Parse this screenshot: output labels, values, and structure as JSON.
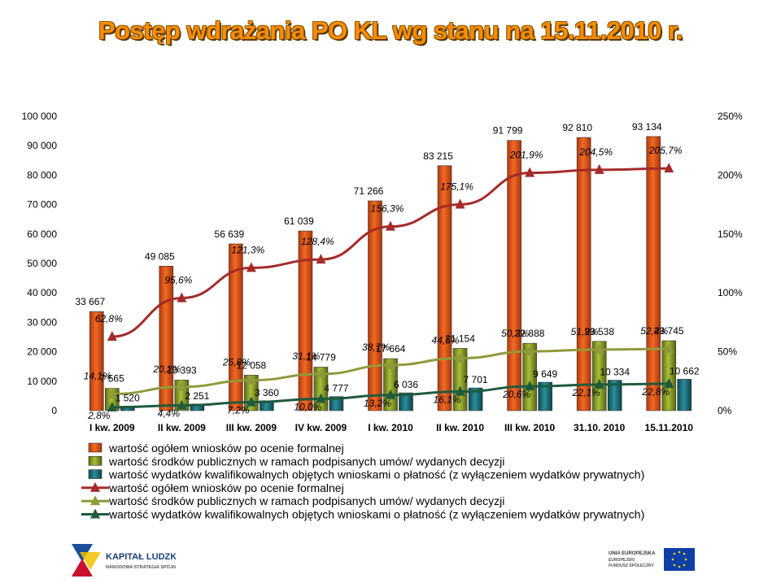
{
  "title": "Postęp wdrażania PO KL wg stanu na 15.11.2010 r.",
  "colors": {
    "series_bar_1": "#e0561b",
    "series_bar_2": "#8fa32a",
    "series_bar_3": "#1c6d78",
    "series_line_1": "#a52a2a",
    "series_line_2": "#8f9a3a",
    "series_line_3": "#1e5a3e",
    "title": "#ff8c00"
  },
  "chart_data": {
    "type": "bar",
    "combo": "bar+line",
    "categories": [
      "I kw. 2009",
      "II kw. 2009",
      "III kw. 2009",
      "IV kw. 2009",
      "I kw. 2010",
      "II kw. 2010",
      "III kw. 2010",
      "31.10. 2010",
      "15.11.2010"
    ],
    "left_axis": {
      "ylim": [
        0,
        100000
      ],
      "ticks": [
        "0",
        "10 000",
        "20 000",
        "30 000",
        "40 000",
        "50 000",
        "60 000",
        "70 000",
        "80 000",
        "90 000",
        "100 000"
      ]
    },
    "right_axis": {
      "ylim": [
        0,
        250
      ],
      "ticks": [
        "0%",
        "50%",
        "100%",
        "150%",
        "200%",
        "250%"
      ]
    },
    "bar_series": [
      {
        "name": "wartość ogółem wniosków po ocenie formalnej",
        "values": [
          33667,
          49085,
          56639,
          61039,
          71266,
          83215,
          91799,
          92810,
          93134
        ],
        "labels": [
          "33 667",
          "49 085",
          "56 639",
          "61 039",
          "71 266",
          "83 215",
          "91 799",
          "92 810",
          "93 134"
        ]
      },
      {
        "name": "wartość środków publicznych w ramach podpisanych umów/ wydanych decyzji",
        "values": [
          7565,
          10393,
          12058,
          14779,
          17664,
          21154,
          22888,
          23538,
          23745
        ],
        "labels": [
          "7 565",
          "10 393",
          "12 058",
          "14 779",
          "17 664",
          "21 154",
          "22 888",
          "23 538",
          "23 745"
        ]
      },
      {
        "name": "wartość wydatków kwalifikowalnych objętych wnioskami o płatność (z wyłączeniem wydatków prywatnych)",
        "values": [
          1520,
          2251,
          3360,
          4777,
          6036,
          7701,
          9649,
          10334,
          10662
        ],
        "labels": [
          "1 520",
          "2 251",
          "3 360",
          "4 777",
          "6 036",
          "7 701",
          "9 649",
          "10 334",
          "10 662"
        ]
      }
    ],
    "line_series": [
      {
        "name": "wartość ogółem wniosków po ocenie formalnej",
        "values": [
          62.8,
          95.6,
          121.3,
          128.4,
          156.3,
          175.1,
          201.9,
          204.5,
          205.7
        ],
        "labels": [
          "62,8%",
          "95,6%",
          "121,3%",
          "128,4%",
          "156,3%",
          "175,1%",
          "201,9%",
          "204,5%",
          "205,7%"
        ]
      },
      {
        "name": "wartość środków publicznych w ramach podpisanych umów/ wydanych decyzji",
        "values": [
          14.1,
          20.2,
          25.8,
          31.1,
          38.7,
          44.5,
          50.3,
          51.9,
          52.4
        ],
        "labels": [
          "14,1%",
          "20,2%",
          "25,8%",
          "31,1%",
          "38,7%",
          "44,5%",
          "50,3%",
          "51,9%",
          "52,4%"
        ]
      },
      {
        "name": "wartość wydatków kwalifikowalnych objętych wnioskami o płatność (z wyłączeniem wydatków prywatnych)",
        "values": [
          2.8,
          4.4,
          7.2,
          10.0,
          13.2,
          16.1,
          20.6,
          22.1,
          22.8
        ],
        "labels": [
          "2,8%",
          "4,4%",
          "7,2%",
          "10,0%",
          "13,2%",
          "16,1%",
          "20,6%",
          "22,1%",
          "22,8%"
        ]
      }
    ],
    "legend": {
      "placement": "bottom",
      "entries": [
        "wartość ogółem wniosków po ocenie formalnej",
        "wartość środków publicznych w ramach podpisanych umów/ wydanych decyzji",
        "wartość wydatków kwalifikowalnych objętych wnioskami o płatność (z wyłączeniem wydatków prywatnych)",
        "wartość ogółem wniosków po ocenie formalnej",
        "wartość środków publicznych w ramach podpisanych umów/ wydanych decyzji",
        "wartość wydatków kwalifikowalnych objętych wnioskami o płatność (z wyłączeniem wydatków prywatnych)"
      ]
    },
    "grid": false
  },
  "logos": {
    "left": {
      "line1": "KAPITAŁ LUDZKI",
      "line2": "NARODOWA STRATEGIA SPÓJNOŚCI"
    },
    "right": {
      "line1": "UNIA EUROPEJSKA",
      "line2": "EUROPEJSKI",
      "line3": "FUNDUSZ SPOŁECZNY"
    }
  }
}
